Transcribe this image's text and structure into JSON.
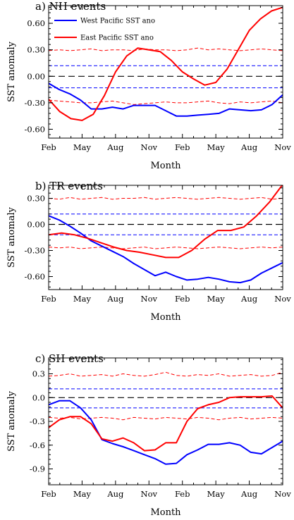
{
  "chart_data": [
    {
      "type": "line",
      "title": "a) NH events",
      "xlabel": "Month",
      "ylabel": "SST anomaly",
      "x_tick_labels": [
        "Feb",
        "May",
        "Aug",
        "Nov",
        "Feb",
        "May",
        "Aug",
        "Nov"
      ],
      "y_ticks": [
        0.6,
        0.3,
        0.0,
        -0.3,
        -0.6
      ],
      "y_tick_labels": [
        "0.60",
        "0.30",
        "0.00",
        "-0.30",
        "-0.60"
      ],
      "ylim": [
        -0.7,
        0.8
      ],
      "grid": false,
      "legend": {
        "placement": "top-left",
        "entries": [
          "West Pacific SST ano",
          "East Pacific SST ano"
        ]
      },
      "series": [
        {
          "name": "West Pacific SST ano",
          "color": "#0000ff",
          "style": "solid",
          "values": [
            -0.08,
            -0.15,
            -0.2,
            -0.27,
            -0.37,
            -0.37,
            -0.35,
            -0.37,
            -0.33,
            -0.33,
            -0.33,
            -0.39,
            -0.45,
            -0.45,
            -0.44,
            -0.43,
            -0.42,
            -0.37,
            -0.38,
            -0.39,
            -0.38,
            -0.32,
            -0.21
          ]
        },
        {
          "name": "East Pacific SST ano",
          "color": "#ff0000",
          "style": "solid",
          "values": [
            -0.26,
            -0.4,
            -0.48,
            -0.5,
            -0.43,
            -0.22,
            0.05,
            0.23,
            0.32,
            0.3,
            0.28,
            0.18,
            0.05,
            -0.03,
            -0.1,
            -0.07,
            0.08,
            0.3,
            0.52,
            0.65,
            0.74,
            0.78
          ]
        },
        {
          "color": "#ff0000",
          "style": "dashed",
          "role": "upper significance",
          "values": [
            0.29,
            0.3,
            0.29,
            0.3,
            0.31,
            0.29,
            0.3,
            0.3,
            0.29,
            0.31,
            0.3,
            0.3,
            0.29,
            0.3,
            0.32,
            0.3,
            0.31,
            0.3,
            0.29,
            0.3,
            0.31,
            0.3,
            0.29
          ]
        },
        {
          "color": "#ff0000",
          "style": "dashed",
          "role": "lower significance",
          "values": [
            -0.27,
            -0.28,
            -0.29,
            -0.3,
            -0.3,
            -0.29,
            -0.28,
            -0.3,
            -0.32,
            -0.31,
            -0.3,
            -0.29,
            -0.3,
            -0.3,
            -0.29,
            -0.28,
            -0.3,
            -0.31,
            -0.29,
            -0.3,
            -0.29,
            -0.28,
            -0.3
          ]
        },
        {
          "color": "#0000ff",
          "style": "dashed",
          "role": "upper significance",
          "values": [
            0.12,
            0.12,
            0.12,
            0.12,
            0.12,
            0.12,
            0.12,
            0.12,
            0.12,
            0.12,
            0.12,
            0.12,
            0.12,
            0.12,
            0.12,
            0.12,
            0.12,
            0.12,
            0.12,
            0.12,
            0.12,
            0.12,
            0.12
          ]
        },
        {
          "color": "#0000ff",
          "style": "dashed",
          "role": "lower significance",
          "values": [
            -0.13,
            -0.13,
            -0.13,
            -0.13,
            -0.13,
            -0.13,
            -0.13,
            -0.13,
            -0.13,
            -0.13,
            -0.13,
            -0.13,
            -0.13,
            -0.13,
            -0.13,
            -0.13,
            -0.13,
            -0.13,
            -0.13,
            -0.13,
            -0.13,
            -0.13,
            -0.13
          ]
        },
        {
          "color": "#000000",
          "style": "dashed",
          "role": "zero line",
          "values": [
            0,
            0
          ]
        }
      ]
    },
    {
      "type": "line",
      "title": "b) TR events",
      "xlabel": "Month",
      "ylabel": "SST anomaly",
      "x_tick_labels": [
        "Feb",
        "May",
        "Aug",
        "Nov",
        "Feb",
        "May",
        "Aug",
        "Nov"
      ],
      "y_ticks": [
        0.3,
        0.0,
        -0.3,
        -0.6
      ],
      "y_tick_labels": [
        "0.30",
        "0.00",
        "-0.30",
        "-0.60"
      ],
      "ylim": [
        -0.75,
        0.45
      ],
      "grid": false,
      "series": [
        {
          "name": "West Pacific SST ano",
          "color": "#0000ff",
          "style": "solid",
          "values": [
            0.1,
            0.05,
            -0.02,
            -0.1,
            -0.19,
            -0.25,
            -0.31,
            -0.37,
            -0.45,
            -0.52,
            -0.59,
            -0.55,
            -0.6,
            -0.64,
            -0.63,
            -0.61,
            -0.63,
            -0.66,
            -0.67,
            -0.64,
            -0.56,
            -0.5,
            -0.44
          ]
        },
        {
          "name": "East Pacific SST ano",
          "color": "#ff0000",
          "style": "solid",
          "values": [
            -0.12,
            -0.1,
            -0.12,
            -0.16,
            -0.21,
            -0.26,
            -0.3,
            -0.32,
            -0.35,
            -0.38,
            -0.38,
            -0.3,
            -0.17,
            -0.07,
            -0.07,
            -0.03,
            0.1,
            0.26,
            0.46
          ]
        },
        {
          "color": "#ff0000",
          "style": "dashed",
          "role": "upper significance",
          "values": [
            0.3,
            0.29,
            0.31,
            0.29,
            0.3,
            0.31,
            0.29,
            0.3,
            0.3,
            0.31,
            0.29,
            0.3,
            0.31,
            0.3,
            0.29,
            0.3,
            0.31,
            0.3,
            0.29,
            0.3,
            0.31,
            0.29,
            0.3
          ]
        },
        {
          "color": "#ff0000",
          "style": "dashed",
          "role": "lower significance",
          "values": [
            -0.26,
            -0.27,
            -0.26,
            -0.28,
            -0.27,
            -0.26,
            -0.27,
            -0.28,
            -0.27,
            -0.26,
            -0.28,
            -0.27,
            -0.26,
            -0.27,
            -0.28,
            -0.27,
            -0.26,
            -0.27,
            -0.28,
            -0.27,
            -0.26,
            -0.27,
            -0.26
          ]
        },
        {
          "color": "#0000ff",
          "style": "dashed",
          "role": "upper significance",
          "values": [
            0.12,
            0.12,
            0.12,
            0.12,
            0.12,
            0.12,
            0.12,
            0.12,
            0.12,
            0.12,
            0.12,
            0.12,
            0.12,
            0.12,
            0.12,
            0.12,
            0.12,
            0.12,
            0.12,
            0.12,
            0.12,
            0.12,
            0.12
          ]
        },
        {
          "color": "#0000ff",
          "style": "dashed",
          "role": "lower significance",
          "values": [
            -0.12,
            -0.12,
            -0.12,
            -0.12,
            -0.12,
            -0.12,
            -0.12,
            -0.12,
            -0.12,
            -0.12,
            -0.12,
            -0.12,
            -0.12,
            -0.12,
            -0.12,
            -0.12,
            -0.12,
            -0.12,
            -0.12,
            -0.12,
            -0.12,
            -0.12,
            -0.12
          ]
        },
        {
          "color": "#000000",
          "style": "dashed",
          "role": "zero line",
          "values": [
            0,
            0
          ]
        }
      ]
    },
    {
      "type": "line",
      "title": "c) SH events",
      "xlabel": "Month",
      "ylabel": "SST anomaly",
      "x_tick_labels": [
        "Feb",
        "May",
        "Aug",
        "Nov",
        "Feb",
        "May",
        "Aug",
        "Nov"
      ],
      "y_ticks": [
        0.3,
        0.0,
        -0.3,
        -0.6,
        -0.9
      ],
      "y_tick_labels": [
        "0.3",
        "0.0",
        "-0.3",
        "-0.6",
        "-0.9"
      ],
      "ylim": [
        -1.1,
        0.5
      ],
      "grid": false,
      "series": [
        {
          "name": "West Pacific SST ano",
          "color": "#0000ff",
          "style": "solid",
          "values": [
            -0.09,
            -0.04,
            -0.04,
            -0.13,
            -0.28,
            -0.53,
            -0.58,
            -0.62,
            -0.67,
            -0.72,
            -0.77,
            -0.84,
            -0.83,
            -0.72,
            -0.66,
            -0.59,
            -0.59,
            -0.57,
            -0.6,
            -0.69,
            -0.71,
            -0.63,
            -0.55
          ]
        },
        {
          "name": "East Pacific SST ano",
          "color": "#ff0000",
          "style": "solid",
          "values": [
            -0.38,
            -0.28,
            -0.24,
            -0.24,
            -0.33,
            -0.52,
            -0.55,
            -0.51,
            -0.57,
            -0.67,
            -0.66,
            -0.57,
            -0.57,
            -0.3,
            -0.14,
            -0.09,
            -0.06,
            0.0,
            0.01,
            0.01,
            0.01,
            0.02,
            -0.13
          ]
        },
        {
          "color": "#ff0000",
          "style": "dashed",
          "role": "upper significance",
          "values": [
            0.27,
            0.28,
            0.3,
            0.27,
            0.28,
            0.29,
            0.27,
            0.3,
            0.28,
            0.27,
            0.29,
            0.32,
            0.28,
            0.27,
            0.29,
            0.28,
            0.3,
            0.27,
            0.28,
            0.29,
            0.27,
            0.28,
            0.32
          ]
        },
        {
          "color": "#ff0000",
          "style": "dashed",
          "role": "lower significance",
          "values": [
            -0.25,
            -0.26,
            -0.25,
            -0.27,
            -0.26,
            -0.25,
            -0.26,
            -0.28,
            -0.25,
            -0.26,
            -0.27,
            -0.25,
            -0.26,
            -0.27,
            -0.25,
            -0.26,
            -0.28,
            -0.26,
            -0.25,
            -0.27,
            -0.26,
            -0.25,
            -0.26
          ]
        },
        {
          "color": "#0000ff",
          "style": "dashed",
          "role": "upper significance",
          "values": [
            0.11,
            0.11,
            0.11,
            0.11,
            0.11,
            0.11,
            0.11,
            0.11,
            0.11,
            0.11,
            0.11,
            0.11,
            0.11,
            0.11,
            0.11,
            0.11,
            0.11,
            0.11,
            0.11,
            0.11,
            0.11,
            0.11,
            0.11
          ]
        },
        {
          "color": "#0000ff",
          "style": "dashed",
          "role": "lower significance",
          "values": [
            -0.13,
            -0.13,
            -0.13,
            -0.13,
            -0.13,
            -0.13,
            -0.13,
            -0.13,
            -0.13,
            -0.13,
            -0.13,
            -0.13,
            -0.13,
            -0.13,
            -0.13,
            -0.13,
            -0.13,
            -0.13,
            -0.13,
            -0.13,
            -0.13,
            -0.13,
            -0.13
          ]
        },
        {
          "color": "#000000",
          "style": "dashed",
          "role": "zero line",
          "values": [
            0,
            0
          ]
        }
      ]
    }
  ]
}
